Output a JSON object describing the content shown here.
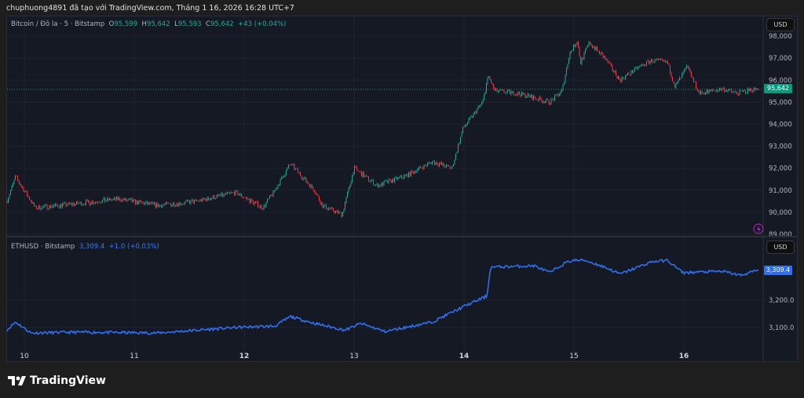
{
  "caption": "chuphuong4891 đã tạo với TradingView.com, Tháng 1 16, 2026 16:28 UTC+7",
  "btc_legend": {
    "symbol": "Bitcoin / Đô la · 5 · Bitstamp",
    "o_label": "O",
    "o": "95,599",
    "h_label": "H",
    "h": "95,642",
    "l_label": "L",
    "l": "95,593",
    "c_label": "C",
    "c": "95,642",
    "change": "+43 (+0.04%)"
  },
  "eth_legend": {
    "symbol": "ETHUSD · Bitstamp",
    "price": "3,309.4",
    "change": "+1.0 (+0.03%)"
  },
  "currency": "USD",
  "btc_last_tag": "95,642",
  "eth_last_tag": "3,309.4",
  "brand": "TradingView",
  "colors": {
    "up": "#22ab94",
    "down": "#f23645",
    "eth": "#2f6ff0",
    "bg": "#151924"
  },
  "chart_data": [
    {
      "type": "candlestick",
      "title": "Bitcoin / Đô la · 5 · Bitstamp",
      "ylim": [
        89000,
        98000
      ],
      "yticks": [
        "89,000",
        "90,000",
        "91,000",
        "92,000",
        "93,000",
        "94,000",
        "95,000",
        "96,000",
        "97,000",
        "98,000"
      ],
      "xticks": [
        "10",
        "11",
        "12",
        "13",
        "14",
        "15",
        "16"
      ],
      "x": [
        9.84,
        9.92,
        10.1,
        10.49,
        10.85,
        11.21,
        11.57,
        11.92,
        12.17,
        12.28,
        12.42,
        12.64,
        12.71,
        12.89,
        13.0,
        13.21,
        13.49,
        13.71,
        13.89,
        13.99,
        14.17,
        14.22,
        14.28,
        14.49,
        14.78,
        14.89,
        14.96,
        15.03,
        15.06,
        15.14,
        15.28,
        15.42,
        15.56,
        15.71,
        15.85,
        15.92,
        16.03,
        16.14,
        16.35,
        16.49,
        16.67
      ],
      "y": [
        90500,
        91600,
        90200,
        90400,
        90600,
        90300,
        90500,
        90900,
        90200,
        91000,
        92200,
        91000,
        90300,
        89900,
        92000,
        91200,
        91700,
        92300,
        92000,
        93800,
        95000,
        96200,
        95500,
        95400,
        95000,
        95500,
        97200,
        97800,
        96800,
        97700,
        97000,
        96000,
        96500,
        96900,
        96800,
        95700,
        96600,
        95400,
        95600,
        95400,
        95642
      ]
    },
    {
      "type": "line",
      "title": "ETHUSD · Bitstamp",
      "ylim": [
        3050,
        3400
      ],
      "yticks": [
        "3,100.0",
        "3,200.0"
      ],
      "x": [
        9.84,
        9.92,
        10.06,
        10.49,
        11.21,
        11.92,
        12.28,
        12.42,
        12.64,
        12.92,
        13.06,
        13.28,
        13.71,
        13.99,
        14.21,
        14.24,
        14.64,
        14.78,
        14.92,
        14.99,
        15.1,
        15.28,
        15.42,
        15.71,
        15.85,
        15.99,
        16.35,
        16.52,
        16.67
      ],
      "y": [
        3090,
        3120,
        3080,
        3083,
        3080,
        3100,
        3105,
        3140,
        3115,
        3090,
        3115,
        3085,
        3120,
        3175,
        3215,
        3320,
        3325,
        3300,
        3335,
        3345,
        3345,
        3320,
        3295,
        3340,
        3345,
        3300,
        3305,
        3290,
        3309.4
      ]
    }
  ]
}
